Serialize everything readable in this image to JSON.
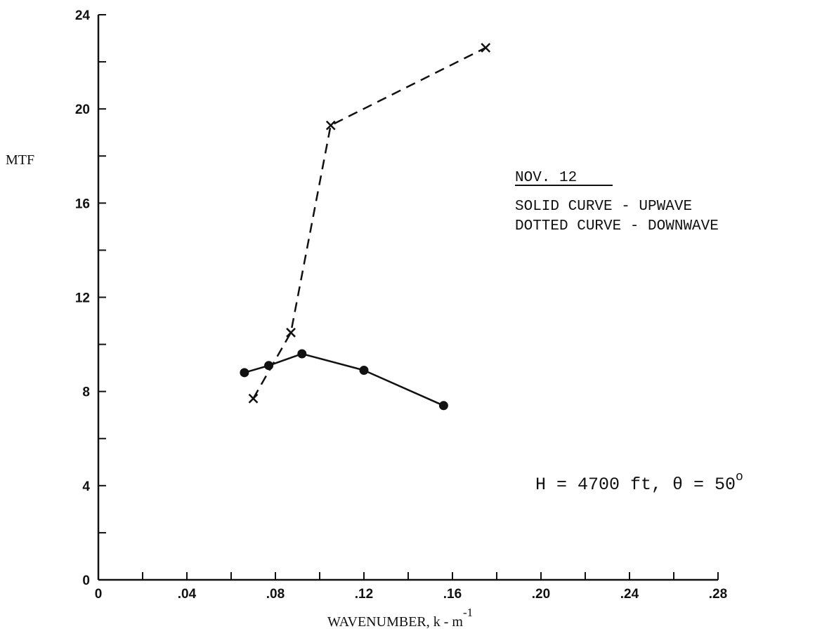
{
  "chart_data": {
    "type": "line",
    "ylabel": "MTF",
    "xlabel_text": "WAVENUMBER, k - m",
    "xlabel_exponent": "-1",
    "xlim": [
      0,
      0.28
    ],
    "ylim": [
      0,
      24
    ],
    "x_ticks": [
      0,
      0.04,
      0.08,
      0.12,
      0.16,
      0.2,
      0.24,
      0.28
    ],
    "x_tick_labels": [
      "0",
      ".04",
      ".08",
      ".12",
      ".16",
      ".20",
      ".24",
      ".28"
    ],
    "y_ticks": [
      0,
      4,
      8,
      12,
      16,
      20,
      24
    ],
    "y_tick_labels": [
      "0",
      "4",
      "8",
      "12",
      "16",
      "20",
      "24"
    ],
    "series": [
      {
        "name": "SOLID CURVE - UPWAVE",
        "style": "solid",
        "marker": "dot",
        "x": [
          0.066,
          0.077,
          0.092,
          0.12,
          0.156
        ],
        "y": [
          8.8,
          9.1,
          9.6,
          8.9,
          7.4
        ]
      },
      {
        "name": "DOTTED CURVE - DOWNWAVE",
        "style": "dashed",
        "marker": "x",
        "x": [
          0.07,
          0.087,
          0.105,
          0.175
        ],
        "y": [
          7.7,
          10.5,
          19.3,
          22.6
        ]
      }
    ],
    "annotations": {
      "date": "NOV. 12",
      "line1": "SOLID CURVE - UPWAVE",
      "line2": "DOTTED CURVE - DOWNWAVE",
      "params_prefix": "H = 4700 ft, θ = 50",
      "params_sup": "o"
    },
    "grid": false,
    "colors": {
      "ink": "#111111",
      "background": "#ffffff"
    }
  }
}
